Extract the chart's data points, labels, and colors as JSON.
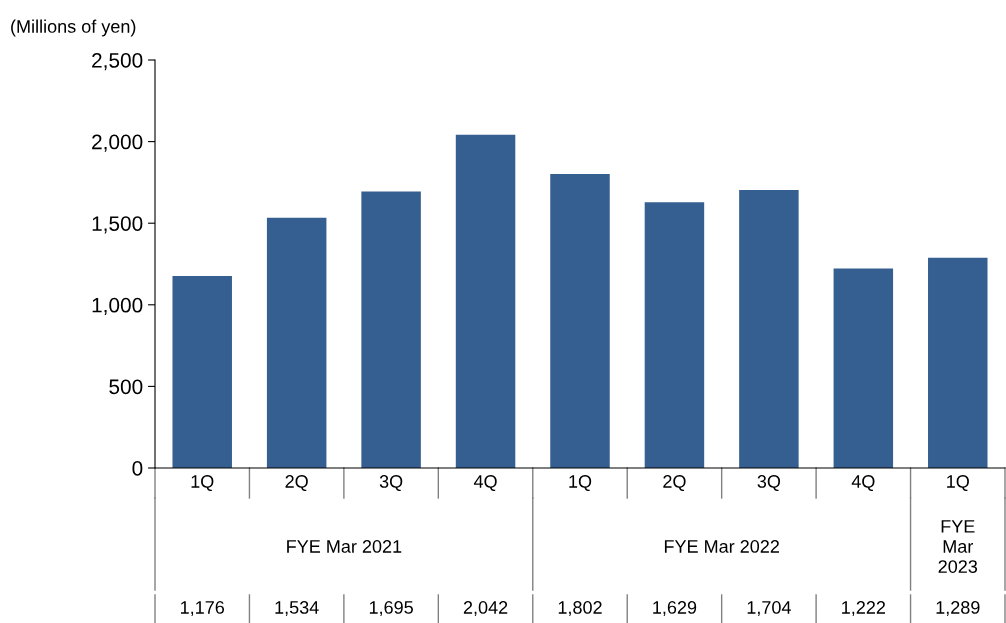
{
  "chart_data": {
    "type": "bar",
    "ylabel": "(Millions of yen)",
    "categories": [
      "1Q",
      "2Q",
      "3Q",
      "4Q",
      "1Q",
      "2Q",
      "3Q",
      "4Q",
      "1Q"
    ],
    "values": [
      1176,
      1534,
      1695,
      2042,
      1802,
      1629,
      1704,
      1222,
      1289
    ],
    "color": "#365f91",
    "ylim": [
      0,
      2500
    ],
    "yticks": [
      0,
      500,
      {
        "value": 1000,
        "label": "1,000"
      },
      {
        "value": 1500,
        "label": "1,500"
      },
      {
        "value": 2000,
        "label": "2,000"
      },
      {
        "value": 2500,
        "label": "2,500"
      }
    ],
    "value_labels": [
      "1,176",
      "1,534",
      "1,695",
      "2,042",
      "1,802",
      "1,629",
      "1,704",
      "1,222",
      "1,289"
    ],
    "annotations": [
      "FYE Mar 2021",
      "FYE Mar 2022",
      "FYE Mar 2023"
    ]
  }
}
